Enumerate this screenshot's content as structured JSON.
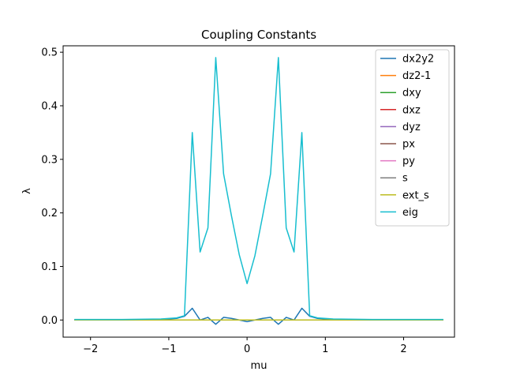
{
  "chart_data": {
    "type": "line",
    "title": "Coupling Constants",
    "xlabel": "mu",
    "ylabel": "λ",
    "xlim": [
      -2.35,
      2.65
    ],
    "ylim": [
      -0.032,
      0.512
    ],
    "xticks": [
      -2,
      -1,
      0,
      1,
      2
    ],
    "xtick_labels": [
      "−2",
      "−1",
      "0",
      "1",
      "2"
    ],
    "yticks": [
      0.0,
      0.1,
      0.2,
      0.3,
      0.4,
      0.5
    ],
    "ytick_labels": [
      "0.0",
      "0.1",
      "0.2",
      "0.3",
      "0.4",
      "0.5"
    ],
    "grid": false,
    "legend_position": "top-right",
    "x": [
      -2.2,
      -1.6,
      -1.1,
      -0.9,
      -0.8,
      -0.7,
      -0.6,
      -0.5,
      -0.4,
      -0.3,
      -0.2,
      -0.1,
      0.0,
      0.1,
      0.2,
      0.3,
      0.4,
      0.5,
      0.6,
      0.7,
      0.8,
      0.9,
      1.1,
      1.6,
      2.5
    ],
    "series": [
      {
        "name": "dx2y2",
        "color": "#1f77b4",
        "values": [
          0.0,
          0.0005,
          0.001,
          0.003,
          0.007,
          0.022,
          0.0,
          0.005,
          -0.008,
          0.005,
          0.003,
          0.0,
          -0.003,
          0.0,
          0.003,
          0.005,
          -0.008,
          0.005,
          0.0,
          0.022,
          0.007,
          0.003,
          0.001,
          0.0005,
          0.0
        ]
      },
      {
        "name": "dz2-1",
        "color": "#ff7f0e",
        "values": [
          0,
          0,
          0,
          0,
          0,
          0,
          0,
          0,
          0,
          0,
          0,
          0,
          0,
          0,
          0,
          0,
          0,
          0,
          0,
          0,
          0,
          0,
          0,
          0,
          0
        ]
      },
      {
        "name": "dxy",
        "color": "#2ca02c",
        "values": [
          0,
          0,
          0,
          0,
          0,
          0,
          0,
          0,
          0,
          0,
          0,
          0,
          0,
          0,
          0,
          0,
          0,
          0,
          0,
          0,
          0,
          0,
          0,
          0,
          0
        ]
      },
      {
        "name": "dxz",
        "color": "#d62728",
        "values": [
          0,
          0,
          0,
          0,
          0,
          0,
          0,
          0,
          0,
          0,
          0,
          0,
          0,
          0,
          0,
          0,
          0,
          0,
          0,
          0,
          0,
          0,
          0,
          0,
          0
        ]
      },
      {
        "name": "dyz",
        "color": "#9467bd",
        "values": [
          0,
          0,
          0,
          0,
          0,
          0,
          0,
          0,
          0,
          0,
          0,
          0,
          0,
          0,
          0,
          0,
          0,
          0,
          0,
          0,
          0,
          0,
          0,
          0,
          0
        ]
      },
      {
        "name": "px",
        "color": "#8c564b",
        "values": [
          0,
          0,
          0,
          0,
          0,
          0,
          0,
          0,
          0,
          0,
          0,
          0,
          0,
          0,
          0,
          0,
          0,
          0,
          0,
          0,
          0,
          0,
          0,
          0,
          0
        ]
      },
      {
        "name": "py",
        "color": "#e377c2",
        "values": [
          0,
          0,
          0,
          0,
          0,
          0,
          0,
          0,
          0,
          0,
          0,
          0,
          0,
          0,
          0,
          0,
          0,
          0,
          0,
          0,
          0,
          0,
          0,
          0,
          0
        ]
      },
      {
        "name": "s",
        "color": "#7f7f7f",
        "values": [
          0,
          0,
          0,
          0,
          0,
          0,
          0,
          0,
          0,
          0,
          0,
          0,
          0,
          0,
          0,
          0,
          0,
          0,
          0,
          0,
          0,
          0,
          0,
          0,
          0
        ]
      },
      {
        "name": "ext_s",
        "color": "#bcbd22",
        "values": [
          0,
          0,
          0,
          0,
          0,
          0,
          0,
          0,
          0,
          0,
          0,
          0,
          0,
          0,
          0,
          0,
          0,
          0,
          0,
          0,
          0,
          0,
          0,
          0,
          0
        ]
      },
      {
        "name": "eig",
        "color": "#17becf",
        "values": [
          0.001,
          0.001,
          0.002,
          0.004,
          0.008,
          0.35,
          0.127,
          0.172,
          0.49,
          0.273,
          0.195,
          0.122,
          0.068,
          0.12,
          0.195,
          0.273,
          0.49,
          0.172,
          0.127,
          0.35,
          0.008,
          0.004,
          0.002,
          0.001,
          0.001
        ]
      }
    ]
  }
}
